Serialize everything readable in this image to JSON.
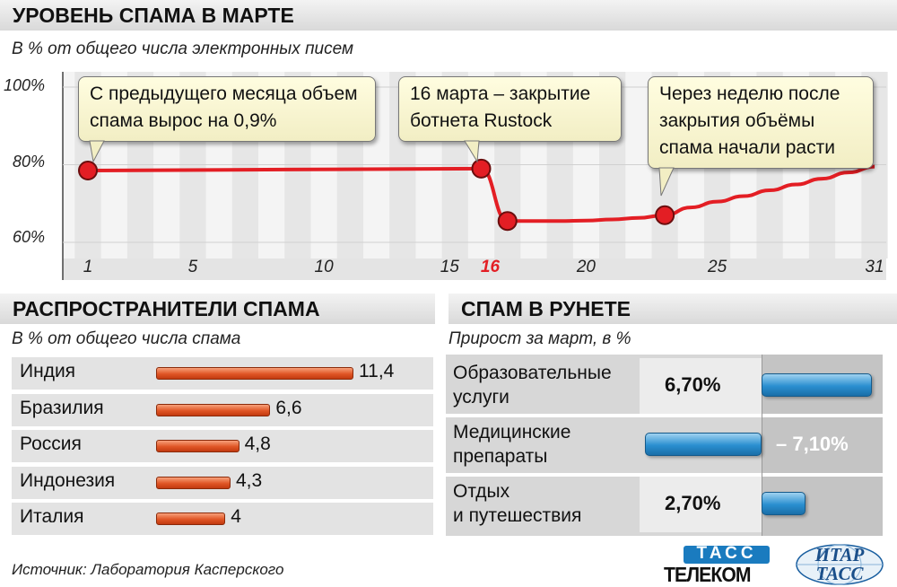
{
  "line_section": {
    "title": "УРОВЕНЬ СПАМА В МАРТЕ",
    "subtitle": "В % от общего числа электронных писем",
    "callouts": [
      {
        "text": "С предыдущего месяца объем спама вырос на 0,9%"
      },
      {
        "text": "16 марта – закрытие ботнета Rustock"
      },
      {
        "text": "Через неделю после закрытия объёмы спама начали расти"
      }
    ]
  },
  "bar_section": {
    "title": "РАСПРОСТРАНИТЕЛИ СПАМА",
    "subtitle": "В % от общего числа спама"
  },
  "runet_section": {
    "title": "СПАМ В РУНЕТЕ",
    "subtitle": "Прирост за март, в %",
    "rows": [
      {
        "label_line1": "Образовательные",
        "label_line2": "услуги",
        "value_text": "6,70%"
      },
      {
        "label_line1": "Медицинские",
        "label_line2": "препараты",
        "value_text": "– 7,10%"
      },
      {
        "label_line1": "Отдых",
        "label_line2": "и путешествия",
        "value_text": "2,70%"
      }
    ]
  },
  "footer": {
    "source": "Источник: Лаборатория Касперского",
    "logo_tass_top": "ТАСС",
    "logo_tass_bottom": "ТЕЛЕКОМ",
    "logo_itar_top": "ИТАР",
    "logo_itar_bottom": "ТАСС"
  },
  "colors": {
    "line": "#e31e24",
    "red_bar": "#e05626",
    "blue_bar": "#2a8fd0",
    "highlight_tick": "#e31e24"
  },
  "chart_data": [
    {
      "type": "line",
      "title": "УРОВЕНЬ СПАМА В МАРТЕ",
      "subtitle": "В % от общего числа электронных писем",
      "x_ticks": [
        "1",
        "5",
        "10",
        "15",
        "16",
        "20",
        "25",
        "31"
      ],
      "highlight_x_tick": "16",
      "y_ticks": [
        "100%",
        "80%",
        "60%"
      ],
      "ylim": [
        58,
        100
      ],
      "xlim": [
        1,
        31
      ],
      "grid": true,
      "series": [
        {
          "x": [
            1,
            16,
            17,
            18,
            19,
            20,
            21,
            22,
            23,
            24,
            25,
            26,
            27,
            28,
            29,
            30,
            31
          ],
          "y": [
            78.5,
            79,
            65.5,
            65.5,
            65.5,
            65.6,
            65.9,
            66.3,
            67,
            69,
            70.5,
            71.9,
            73.4,
            74.9,
            76.4,
            78,
            79.5
          ]
        }
      ],
      "markers_x": [
        1,
        16,
        17,
        23
      ]
    },
    {
      "type": "bar",
      "orientation": "horizontal",
      "title": "РАСПРОСТРАНИТЕЛИ СПАМА",
      "subtitle": "В % от общего числа спама",
      "categories": [
        "Индия",
        "Бразилия",
        "Россия",
        "Индонезия",
        "Италия"
      ],
      "values": [
        11.4,
        6.6,
        4.8,
        4.3,
        4
      ],
      "value_labels": [
        "11,4",
        "6,6",
        "4,8",
        "4,3",
        "4"
      ]
    },
    {
      "type": "bar",
      "orientation": "horizontal",
      "title": "СПАМ В РУНЕТЕ",
      "subtitle": "Прирост за март, в %",
      "categories": [
        "Образовательные услуги",
        "Медицинские препараты",
        "Отдых и путешествия"
      ],
      "values": [
        6.7,
        -7.1,
        2.7
      ]
    }
  ]
}
